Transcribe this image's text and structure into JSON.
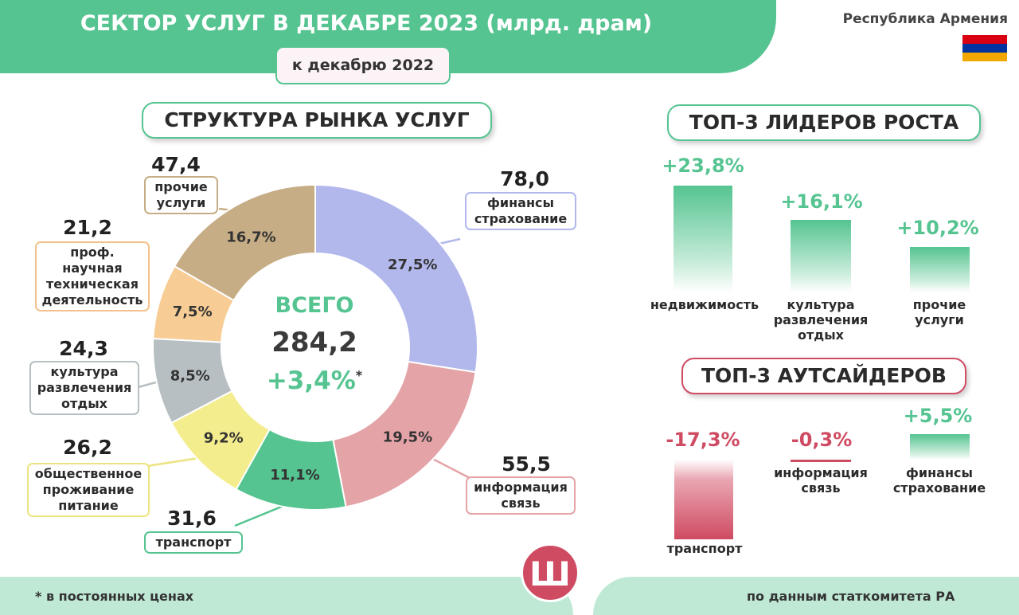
{
  "header": {
    "title": "СЕКТОР УСЛУГ В ДЕКАБРЕ 2023 (млрд. драм)",
    "subtitle": "к декабрю 2022",
    "country": "Республика Армения",
    "flag_colors": [
      "#d90012",
      "#0033a0",
      "#f2a800"
    ]
  },
  "sections": {
    "structure": "СТРУКТУРА РЫНКА УСЛУГ",
    "leaders": "ТОП-3 ЛИДЕРОВ РОСТА",
    "outsiders": "ТОП-3 АУТСАЙДЕРОВ"
  },
  "center": {
    "label": "ВСЕГО",
    "total": "284,2",
    "change": "+3,4%",
    "asterisk": "*"
  },
  "chart_data": [
    {
      "type": "pie",
      "title": "СТРУКТУРА РЫНКА УСЛУГ",
      "slices": [
        {
          "name": "финансы страхование",
          "value": 78.0,
          "value_label": "78,0",
          "share": 27.5,
          "share_label": "27,5%",
          "color": "#b2b8ec",
          "border": "#b2b8ec"
        },
        {
          "name": "информация связь",
          "value": 55.5,
          "value_label": "55,5",
          "share": 19.5,
          "share_label": "19,5%",
          "color": "#e4a3a7",
          "border": "#e4a3a7"
        },
        {
          "name": "транспорт",
          "value": 31.6,
          "value_label": "31,6",
          "share": 11.1,
          "share_label": "11,1%",
          "color": "#55c491",
          "border": "#55c491"
        },
        {
          "name": "общественное проживание питание",
          "value": 26.2,
          "value_label": "26,2",
          "share": 9.2,
          "share_label": "9,2%",
          "color": "#f3ed8d",
          "border": "#ece480"
        },
        {
          "name": "культура развлечения отдых",
          "value": 24.3,
          "value_label": "24,3",
          "share": 8.5,
          "share_label": "8,5%",
          "color": "#b7bfc3",
          "border": "#b7bfc3"
        },
        {
          "name": "проф. научная техническая деятельность",
          "value": 21.2,
          "value_label": "21,2",
          "share": 7.5,
          "share_label": "7,5%",
          "color": "#f7cd95",
          "border": "#f3c28a"
        },
        {
          "name": "прочие услуги",
          "value": 47.4,
          "value_label": "47,4",
          "share": 16.7,
          "share_label": "16,7%",
          "color": "#c6ad85",
          "border": "#c6ad85"
        }
      ]
    },
    {
      "type": "bar",
      "title": "ТОП-3 ЛИДЕРОВ РОСТА",
      "categories": [
        "недвижимость",
        "культура развлечения отдых",
        "прочие услуги"
      ],
      "values": [
        23.8,
        16.1,
        10.2
      ],
      "value_labels": [
        "+23,8%",
        "+16,1%",
        "+10,2%"
      ]
    },
    {
      "type": "bar",
      "title": "ТОП-3 АУТСАЙДЕРОВ",
      "categories": [
        "транспорт",
        "информация связь",
        "финансы страхование"
      ],
      "values": [
        -17.3,
        -0.3,
        5.5
      ],
      "value_labels": [
        "-17,3%",
        "-0,3%",
        "+5,5%"
      ]
    }
  ],
  "pie_labels": {
    "l0": [
      "финансы",
      "страхование"
    ],
    "l1": [
      "информация",
      "связь"
    ],
    "l2": [
      "транспорт"
    ],
    "l3": [
      "общественное",
      "проживание",
      "питание"
    ],
    "l4": [
      "культура",
      "развлечения",
      "отдых"
    ],
    "l5": [
      "проф.",
      "научная",
      "техническая",
      "деятельность"
    ],
    "l6": [
      "прочие",
      "услуги"
    ]
  },
  "leaders_labels": [
    [
      "недвижимость"
    ],
    [
      "культура",
      "развлечения",
      "отдых"
    ],
    [
      "прочие",
      "услуги"
    ]
  ],
  "outsiders_labels": [
    [
      "транспорт"
    ],
    [
      "информация",
      "связь"
    ],
    [
      "финансы",
      "страхование"
    ]
  ],
  "footer": {
    "note": "* в постоянных ценах",
    "source": "по данным статкомитета РА",
    "logo": "Ш"
  }
}
